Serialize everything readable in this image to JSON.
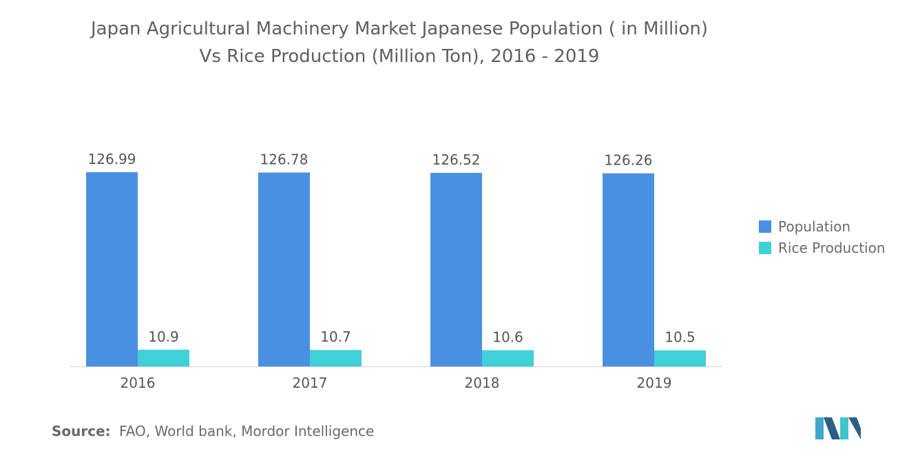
{
  "title_lines": [
    "Japan Agricultural Machinery Market Japanese Population ( in Million)",
    "Vs Rice Production (Million Ton), 2016 - 2019"
  ],
  "colors": {
    "population": "#4a90e2",
    "rice": "#3fd0da",
    "axis": "#cfcfcf",
    "label": "#555555"
  },
  "chart_data": {
    "type": "bar",
    "title": "Japan Agricultural Machinery Market Japanese Population ( in Million) Vs Rice Production (Million Ton), 2016 - 2019",
    "xlabel": "",
    "ylabel": "",
    "categories": [
      "2016",
      "2017",
      "2018",
      "2019"
    ],
    "series": [
      {
        "name": "Population",
        "values": [
          126.99,
          126.78,
          126.52,
          126.26
        ],
        "labels": [
          "126.99",
          "126.78",
          "126.52",
          "126.26"
        ]
      },
      {
        "name": "Rice Production",
        "values": [
          10.9,
          10.7,
          10.6,
          10.5
        ],
        "labels": [
          "10.9",
          "10.7",
          "10.6",
          "10.5"
        ]
      }
    ],
    "ylim": [
      0,
      126.99
    ],
    "grid": false,
    "legend": "right"
  },
  "source": {
    "key": "Source:",
    "text": "FAO, World bank, Mordor Intelligence"
  },
  "logo_icon": "mordor-intelligence-logo-icon"
}
